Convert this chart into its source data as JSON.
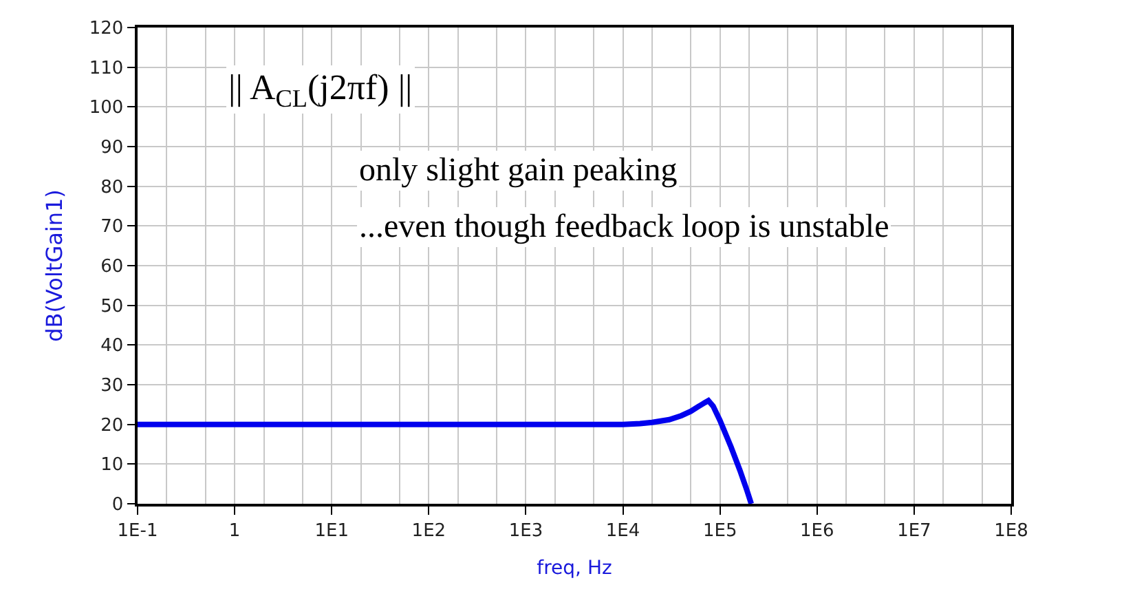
{
  "chart_data": {
    "type": "line",
    "xlabel": "freq, Hz",
    "ylabel": "dB(VoltGain1)",
    "log": "x",
    "grid": true,
    "marker": "none",
    "line_style": "solid",
    "x": [
      0.1,
      1,
      10,
      100,
      1000,
      10000,
      15000,
      20000,
      30000,
      40000,
      50000,
      60000,
      70000,
      76000,
      85000,
      100000,
      130000,
      160000,
      190000,
      210000
    ],
    "series": [
      {
        "color": "#0000ee",
        "values": [
          20,
          20,
          20,
          20,
          20,
          20,
          20.2,
          20.5,
          21.2,
          22.2,
          23.3,
          24.5,
          25.5,
          26,
          24.6,
          21,
          14.3,
          8.5,
          3.3,
          0
        ]
      }
    ],
    "xlim": [
      0.1,
      100000000
    ],
    "ylim": [
      0,
      120
    ],
    "xticks": [
      {
        "value": 0.1,
        "label": "1E-1"
      },
      1,
      {
        "value": 10,
        "label": "1E1"
      },
      {
        "value": 100,
        "label": "1E2"
      },
      {
        "value": 1000,
        "label": "1E3"
      },
      {
        "value": 10000,
        "label": "1E4"
      },
      {
        "value": 100000,
        "label": "1E5"
      },
      {
        "value": 1000000,
        "label": "1E6"
      },
      {
        "value": 10000000,
        "label": "1E7"
      },
      {
        "value": 100000000,
        "label": "1E8"
      }
    ],
    "yticks": [
      0,
      10,
      20,
      30,
      40,
      50,
      60,
      70,
      80,
      90,
      100,
      110,
      120
    ],
    "annotations": [
      "|| A$_{CL}$(j2πf) ||",
      "only slight gain peaking",
      "...even though feedback loop is unstable"
    ]
  }
}
